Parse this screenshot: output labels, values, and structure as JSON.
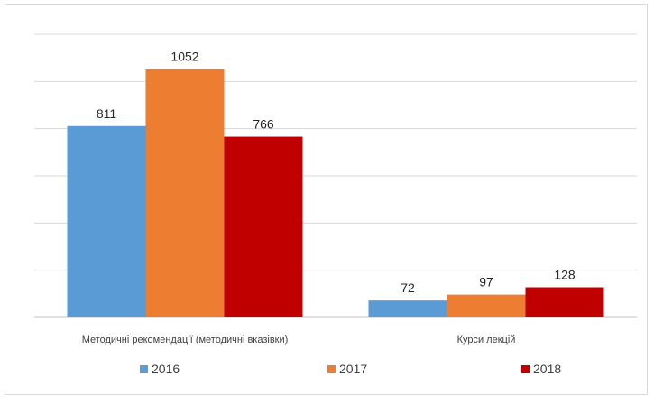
{
  "chart_data": {
    "type": "bar",
    "categories": [
      "Методичні рекомендації (методичні вказівки)",
      "Курси лекцій"
    ],
    "series": [
      {
        "name": "2016",
        "values": [
          811,
          72
        ],
        "color": "#5b9bd5"
      },
      {
        "name": "2017",
        "values": [
          1052,
          97
        ],
        "color": "#ed7d31"
      },
      {
        "name": "2018",
        "values": [
          766,
          128
        ],
        "color": "#c00000"
      }
    ],
    "title": "",
    "xlabel": "",
    "ylabel": "",
    "ylim": [
      0,
      1200
    ],
    "grid": true,
    "gridline_step": 200,
    "legend_position": "bottom"
  }
}
